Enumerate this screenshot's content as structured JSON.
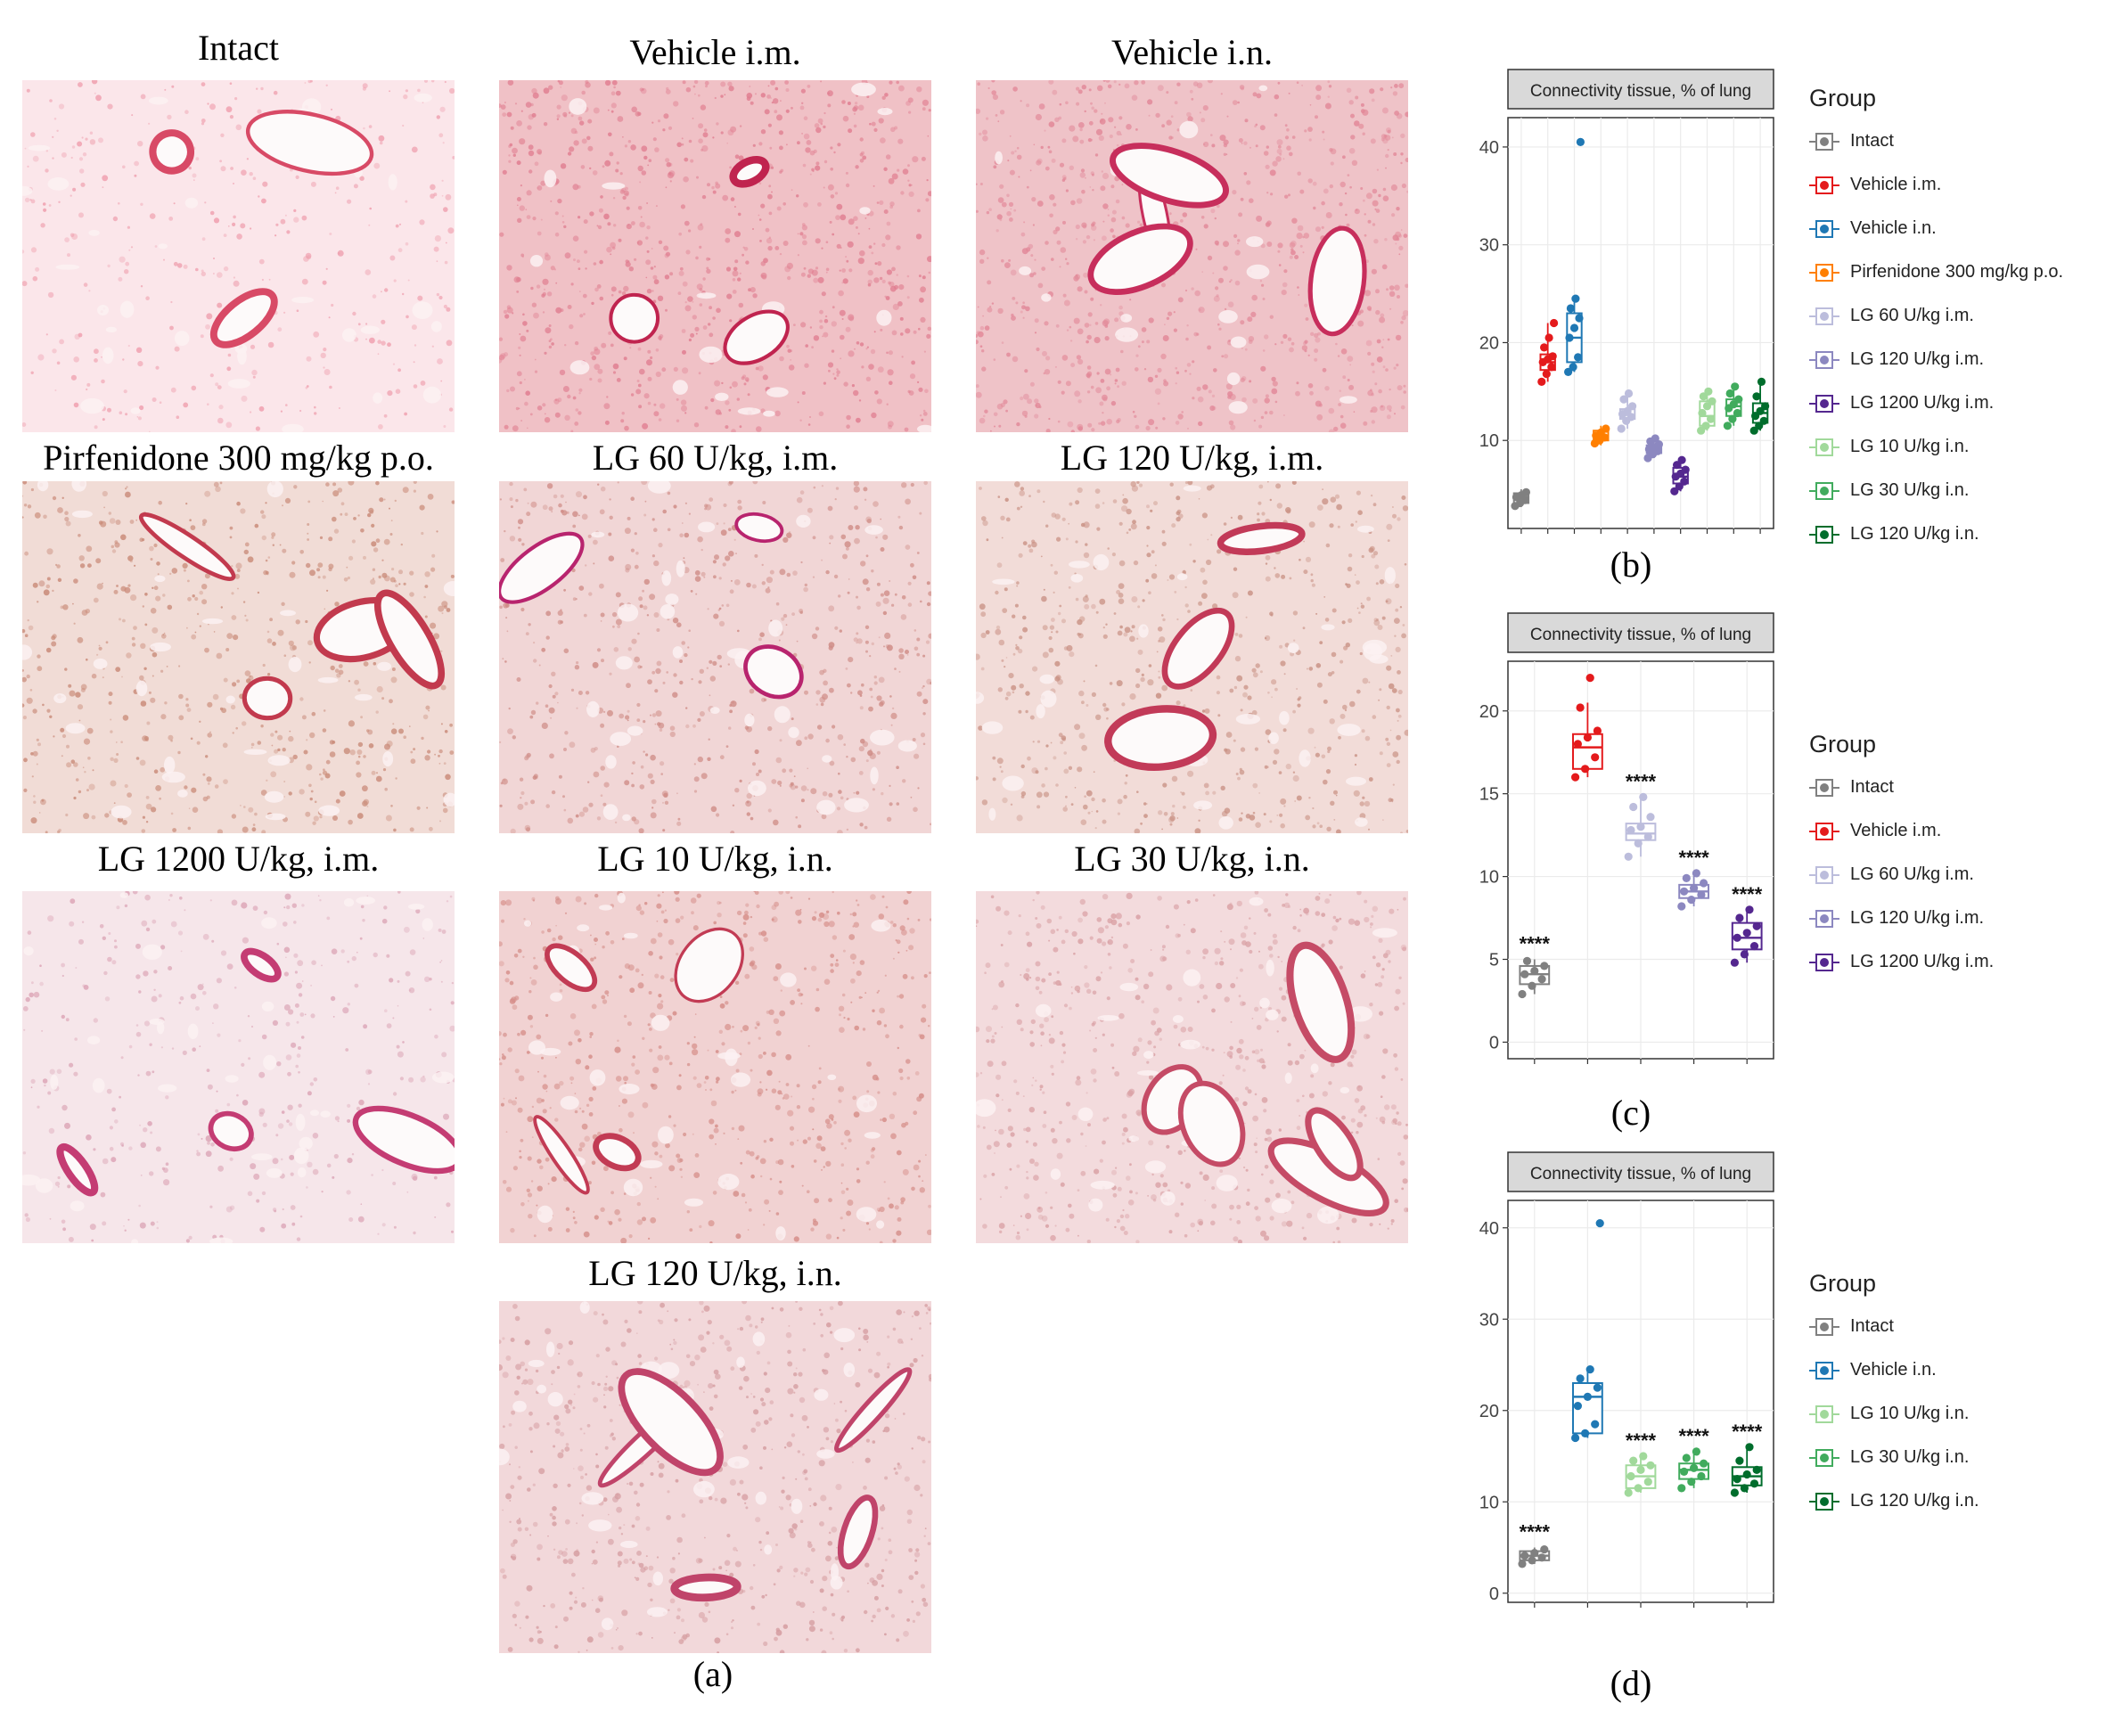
{
  "panel_a": {
    "caption": "(a)",
    "images": [
      {
        "label": "Intact",
        "palette": [
          "#fbe6ea",
          "#ef9fae",
          "#d84a66"
        ],
        "density": "low"
      },
      {
        "label": "Vehicle i.m.",
        "palette": [
          "#f0c1c6",
          "#e07e90",
          "#c0244f"
        ],
        "density": "high"
      },
      {
        "label": "Vehicle i.n.",
        "palette": [
          "#efc3c8",
          "#e28898",
          "#c72e5c"
        ],
        "density": "high"
      },
      {
        "label": "Pirfenidone 300 mg/kg p.o.",
        "palette": [
          "#f1dcd6",
          "#c98a78",
          "#c23a4e"
        ],
        "density": "mid"
      },
      {
        "label": "LG 60 U/kg, i.m.",
        "palette": [
          "#f1d6d6",
          "#cf8c86",
          "#b8246e"
        ],
        "density": "mid"
      },
      {
        "label": "LG 120 U/kg, i.m.",
        "palette": [
          "#f2dcd8",
          "#c99184",
          "#c23a58"
        ],
        "density": "mid"
      },
      {
        "label": "LG 1200 U/kg, i.m.",
        "palette": [
          "#f6e6ea",
          "#dca5b6",
          "#c43c73"
        ],
        "density": "low"
      },
      {
        "label": "LG 10 U/kg, i.n.",
        "palette": [
          "#f1d2d2",
          "#d58d88",
          "#c23b54"
        ],
        "density": "mid"
      },
      {
        "label": "LG 30 U/kg, i.n.",
        "palette": [
          "#f3dbdd",
          "#d9a0a4",
          "#c54b66"
        ],
        "density": "mid"
      },
      {
        "label": "LG 120 U/kg, i.n.",
        "palette": [
          "#f2d8da",
          "#d59ca0",
          "#c0446a"
        ],
        "density": "mid"
      }
    ]
  },
  "chart_data": [
    {
      "type": "box",
      "panel": "(b)",
      "title": "Connectivity tissue, % of lung",
      "ylim": [
        1,
        43
      ],
      "yticks": [
        10,
        20,
        30,
        40
      ],
      "grid": true,
      "legend_title": "Group",
      "legend_position": "right",
      "groups": [
        {
          "name": "Intact",
          "color": "#808080",
          "q1": 3.6,
          "median": 4.2,
          "q3": 4.6,
          "min": 3.2,
          "max": 5.0,
          "points": [
            3.3,
            3.6,
            3.9,
            4.2,
            4.4,
            4.7
          ]
        },
        {
          "name": "Vehicle i.m.",
          "color": "#e41a1c",
          "q1": 17.2,
          "median": 18.0,
          "q3": 18.8,
          "min": 16.0,
          "max": 22.0,
          "points": [
            16.0,
            16.8,
            17.5,
            18.0,
            18.3,
            18.6,
            19.5,
            20.5,
            22.0
          ]
        },
        {
          "name": "Vehicle i.n.",
          "color": "#1f78b4",
          "q1": 18.0,
          "median": 20.5,
          "q3": 23.0,
          "min": 17.0,
          "max": 24.5,
          "points": [
            17.0,
            17.5,
            18.5,
            20.5,
            21.5,
            22.5,
            23.5,
            24.5,
            40.5
          ]
        },
        {
          "name": "Pirfenidone 300 mg/kg p.o.",
          "color": "#ff7f00",
          "q1": 10.0,
          "median": 10.5,
          "q3": 11.0,
          "min": 9.5,
          "max": 11.5,
          "points": [
            9.7,
            10.0,
            10.3,
            10.5,
            10.8,
            11.2
          ]
        },
        {
          "name": "LG 60 U/kg i.m.",
          "color": "#bcbddc",
          "q1": 12.2,
          "median": 12.6,
          "q3": 13.2,
          "min": 11.2,
          "max": 14.8,
          "points": [
            11.2,
            12.0,
            12.4,
            12.7,
            13.0,
            13.5,
            14.2,
            14.8
          ]
        },
        {
          "name": "LG 120 U/kg i.m.",
          "color": "#8c88c0",
          "q1": 8.7,
          "median": 9.1,
          "q3": 9.5,
          "min": 8.2,
          "max": 10.2,
          "points": [
            8.2,
            8.6,
            8.9,
            9.1,
            9.3,
            9.6,
            9.9,
            10.2
          ]
        },
        {
          "name": "LG 1200 U/kg i.m.",
          "color": "#54278f",
          "q1": 5.6,
          "median": 6.3,
          "q3": 7.2,
          "min": 4.8,
          "max": 8.0,
          "points": [
            4.8,
            5.3,
            5.8,
            6.3,
            6.6,
            7.0,
            7.5,
            8.0
          ]
        },
        {
          "name": "LG 10 U/kg i.n.",
          "color": "#a1d99b",
          "q1": 11.5,
          "median": 12.5,
          "q3": 14.0,
          "min": 11.0,
          "max": 15.0,
          "points": [
            11.0,
            11.5,
            12.2,
            12.8,
            13.5,
            14.0,
            14.5,
            15.0
          ]
        },
        {
          "name": "LG 30 U/kg i.n.",
          "color": "#41ab5d",
          "q1": 12.5,
          "median": 13.5,
          "q3": 14.2,
          "min": 11.5,
          "max": 15.5,
          "points": [
            11.5,
            12.2,
            12.8,
            13.3,
            13.7,
            14.2,
            14.8,
            15.5
          ]
        },
        {
          "name": "LG 120 U/kg i.n.",
          "color": "#006d2c",
          "q1": 11.8,
          "median": 12.8,
          "q3": 13.8,
          "min": 11.0,
          "max": 16.0,
          "points": [
            11.0,
            11.5,
            12.0,
            12.5,
            13.0,
            13.5,
            14.5,
            16.0
          ]
        }
      ]
    },
    {
      "type": "box",
      "panel": "(c)",
      "title": "Connectivity tissue, % of lung",
      "ylim": [
        -1,
        23
      ],
      "yticks": [
        0,
        5,
        10,
        15,
        20
      ],
      "grid": true,
      "legend_title": "Group",
      "legend_position": "right",
      "groups": [
        {
          "name": "Intact",
          "color": "#808080",
          "q1": 3.5,
          "median": 4.1,
          "q3": 4.6,
          "min": 2.9,
          "max": 5.0,
          "points": [
            2.9,
            3.4,
            3.8,
            4.1,
            4.3,
            4.6,
            4.9
          ],
          "annotation": "****"
        },
        {
          "name": "Vehicle i.m.",
          "color": "#e41a1c",
          "q1": 16.5,
          "median": 17.8,
          "q3": 18.6,
          "min": 16.0,
          "max": 20.5,
          "points": [
            16.0,
            16.5,
            17.2,
            18.0,
            18.4,
            18.8,
            20.2,
            22.0
          ]
        },
        {
          "name": "LG 60 U/kg i.m.",
          "color": "#bcbddc",
          "q1": 12.2,
          "median": 12.6,
          "q3": 13.2,
          "min": 11.2,
          "max": 14.8,
          "points": [
            11.2,
            12.0,
            12.4,
            12.8,
            13.0,
            13.6,
            14.2,
            14.8
          ],
          "annotation": "****"
        },
        {
          "name": "LG 120 U/kg i.m.",
          "color": "#8c88c0",
          "q1": 8.7,
          "median": 9.1,
          "q3": 9.5,
          "min": 8.2,
          "max": 10.2,
          "points": [
            8.2,
            8.6,
            8.9,
            9.1,
            9.3,
            9.6,
            9.9,
            10.2
          ],
          "annotation": "****"
        },
        {
          "name": "LG 1200 U/kg i.m.",
          "color": "#54278f",
          "q1": 5.6,
          "median": 6.3,
          "q3": 7.2,
          "min": 4.8,
          "max": 8.0,
          "points": [
            4.8,
            5.3,
            5.8,
            6.3,
            6.6,
            7.0,
            7.5,
            8.0
          ],
          "annotation": "****"
        }
      ]
    },
    {
      "type": "box",
      "panel": "(d)",
      "title": "Connectivity tissue, % of lung",
      "ylim": [
        -1,
        43
      ],
      "yticks": [
        0,
        10,
        20,
        30,
        40
      ],
      "grid": true,
      "legend_title": "Group",
      "legend_position": "right",
      "groups": [
        {
          "name": "Intact",
          "color": "#808080",
          "q1": 3.6,
          "median": 4.1,
          "q3": 4.6,
          "min": 3.2,
          "max": 5.0,
          "points": [
            3.2,
            3.6,
            3.9,
            4.1,
            4.4,
            4.8
          ],
          "annotation": "****"
        },
        {
          "name": "Vehicle i.n.",
          "color": "#1f78b4",
          "q1": 17.5,
          "median": 21.5,
          "q3": 23.0,
          "min": 17.0,
          "max": 24.5,
          "points": [
            17.0,
            17.5,
            18.5,
            20.5,
            21.5,
            22.5,
            23.5,
            24.5,
            40.5
          ]
        },
        {
          "name": "LG 10 U/kg i.n.",
          "color": "#a1d99b",
          "q1": 11.5,
          "median": 12.8,
          "q3": 14.0,
          "min": 11.0,
          "max": 15.0,
          "points": [
            11.0,
            11.5,
            12.2,
            12.8,
            13.5,
            14.0,
            14.5,
            15.0
          ],
          "annotation": "****"
        },
        {
          "name": "LG 30 U/kg i.n.",
          "color": "#41ab5d",
          "q1": 12.5,
          "median": 13.5,
          "q3": 14.2,
          "min": 11.5,
          "max": 15.5,
          "points": [
            11.5,
            12.2,
            12.8,
            13.3,
            13.7,
            14.2,
            14.8,
            15.5
          ],
          "annotation": "****"
        },
        {
          "name": "LG 120 U/kg i.n.",
          "color": "#006d2c",
          "q1": 11.8,
          "median": 12.8,
          "q3": 13.8,
          "min": 11.0,
          "max": 16.0,
          "points": [
            11.0,
            11.5,
            12.0,
            12.5,
            13.0,
            13.5,
            14.5,
            16.0
          ],
          "annotation": "****"
        }
      ]
    }
  ]
}
